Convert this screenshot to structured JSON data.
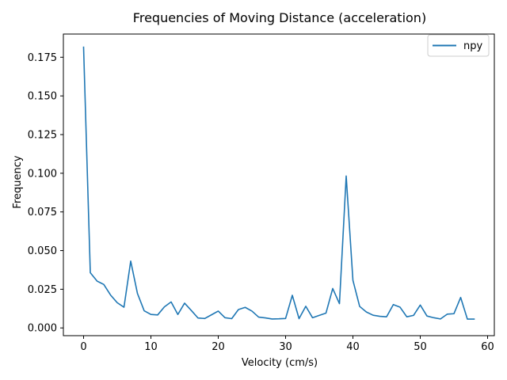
{
  "chart_data": {
    "type": "line",
    "title": "Frequencies of Moving Distance (acceleration)",
    "xlabel": "Velocity (cm/s)",
    "ylabel": "Frequency",
    "xlim": [
      -3.0,
      61.0
    ],
    "ylim": [
      -0.005,
      0.19
    ],
    "xticks": [
      0,
      10,
      20,
      30,
      40,
      50,
      60
    ],
    "xtick_labels": [
      "0",
      "10",
      "20",
      "30",
      "40",
      "50",
      "60"
    ],
    "yticks": [
      0.0,
      0.025,
      0.05,
      0.075,
      0.1,
      0.125,
      0.15,
      0.175
    ],
    "ytick_labels": [
      "0.000",
      "0.025",
      "0.050",
      "0.075",
      "0.100",
      "0.125",
      "0.150",
      "0.175"
    ],
    "grid": false,
    "legend_position": "top-right",
    "series": [
      {
        "name": "npy",
        "color": "#1f77b4",
        "x": [
          0,
          1,
          2,
          3,
          4,
          5,
          6,
          7,
          8,
          9,
          10,
          11,
          12,
          13,
          14,
          15,
          16,
          17,
          18,
          19,
          20,
          21,
          22,
          23,
          24,
          25,
          26,
          27,
          28,
          29,
          30,
          31,
          32,
          33,
          34,
          35,
          36,
          37,
          38,
          39,
          40,
          41,
          42,
          43,
          44,
          45,
          46,
          47,
          48,
          49,
          50,
          51,
          52,
          53,
          54,
          55,
          56,
          57,
          58
        ],
        "y": [
          0.1815,
          0.0357,
          0.0303,
          0.0281,
          0.0213,
          0.0163,
          0.0134,
          0.0432,
          0.0223,
          0.0111,
          0.0087,
          0.0084,
          0.0136,
          0.0168,
          0.0087,
          0.016,
          0.0113,
          0.0064,
          0.0061,
          0.0085,
          0.0109,
          0.0066,
          0.006,
          0.0119,
          0.0133,
          0.0109,
          0.007,
          0.0065,
          0.0058,
          0.0059,
          0.0061,
          0.0211,
          0.006,
          0.014,
          0.0066,
          0.0081,
          0.0096,
          0.0255,
          0.0157,
          0.0982,
          0.0308,
          0.0139,
          0.0103,
          0.0082,
          0.0075,
          0.0072,
          0.0151,
          0.0134,
          0.0072,
          0.0081,
          0.0148,
          0.0077,
          0.0066,
          0.0058,
          0.0089,
          0.0092,
          0.0197,
          0.0057,
          0.0057
        ]
      }
    ]
  }
}
